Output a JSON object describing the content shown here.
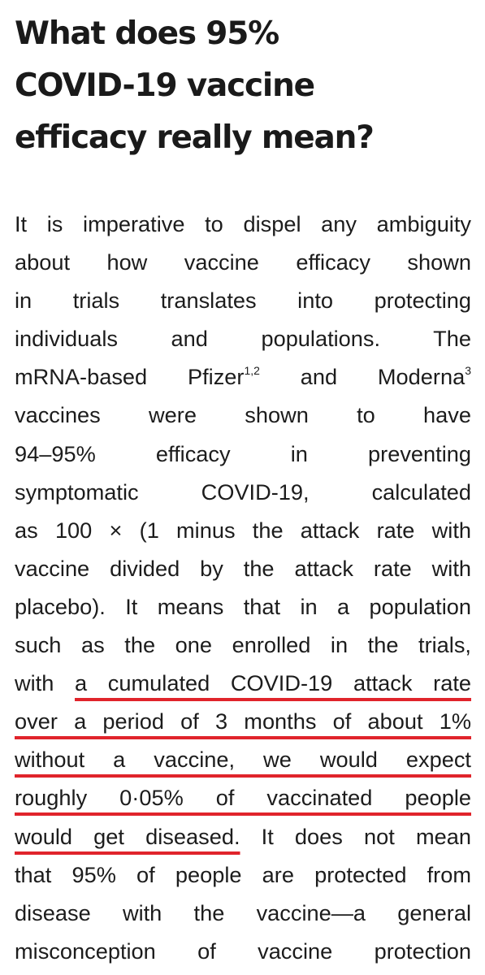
{
  "title": {
    "line1": "What does 95%",
    "line2": "COVID-19 vaccine",
    "line3": "efficacy really mean?"
  },
  "body": {
    "l1": "It is imperative to dispel any ambiguity",
    "l2": "about how vaccine efficacy shown",
    "l3": "in trials translates into protecting",
    "l4": "individuals and populations. The",
    "l5a": "mRNA-based Pfizer",
    "l5_ref1": "1,2",
    "l5b": " and Moderna",
    "l5_ref2": "3",
    "l6": "vaccines were shown to have",
    "l7": "94–95% efficacy in preventing",
    "l8": "symptomatic COVID-19, calculated",
    "l9": "as 100 × (1 minus the attack rate with",
    "l10": "vaccine divided by the attack rate with",
    "l11": "placebo). It means that in a population",
    "l12": "such as the one enrolled in the trials,",
    "l13a": "with ",
    "l13b": "a cumulated COVID-19 attack rate",
    "l14": "over a period of 3 months of about 1%",
    "l15": "without a vaccine, we would expect",
    "l16": "roughly 0·05% of vaccinated people",
    "l17a": "would get diseased.",
    "l17b": " It does not mean",
    "l18": "that 95% of people are protected from",
    "l19": "disease with the vaccine—a general",
    "l20": "misconception of vaccine protection"
  },
  "colors": {
    "text": "#1c1c1c",
    "highlight_underline": "#e0242b",
    "background": "#ffffff"
  }
}
